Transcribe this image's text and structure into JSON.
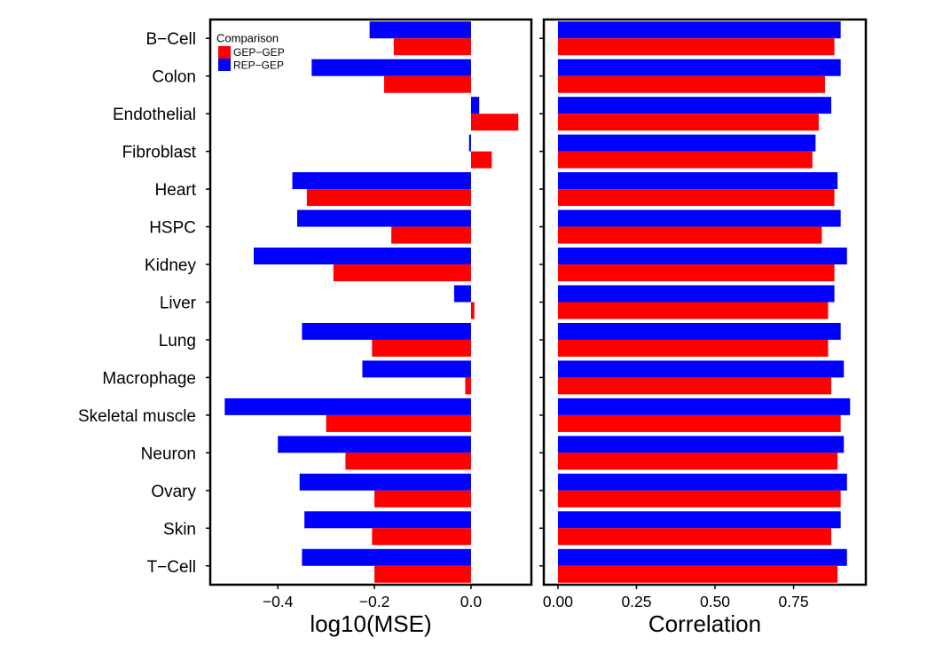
{
  "chart_data": [
    {
      "type": "bar",
      "orientation": "horizontal",
      "categories": [
        "B−Cell",
        "Colon",
        "Endothelial",
        "Fibroblast",
        "Heart",
        "HSPC",
        "Kidney",
        "Liver",
        "Lung",
        "Macrophage",
        "Skeletal muscle",
        "Neuron",
        "Ovary",
        "Skin",
        "T−Cell"
      ],
      "series": [
        {
          "name": "REP−GEP",
          "color": "#0000ff",
          "values": [
            -0.21,
            -0.33,
            0.017,
            -0.004,
            -0.37,
            -0.36,
            -0.45,
            -0.035,
            -0.35,
            -0.225,
            -0.51,
            -0.4,
            -0.355,
            -0.345,
            -0.35
          ]
        },
        {
          "name": "GEP−GEP",
          "color": "#ff0000",
          "values": [
            -0.16,
            -0.18,
            0.098,
            0.043,
            -0.34,
            -0.165,
            -0.285,
            0.007,
            -0.205,
            -0.012,
            -0.3,
            -0.26,
            -0.2,
            -0.205,
            -0.2
          ]
        }
      ],
      "xlabel": "log10(MSE)",
      "xlim": [
        -0.54,
        0.125
      ],
      "xticks": [
        -0.4,
        -0.2,
        0.0
      ],
      "xtick_labels": [
        "−0.4",
        "−0.2",
        "0.0"
      ],
      "legend": {
        "title": "Comparison",
        "position": "top-left",
        "entries": [
          "GEP−GEP",
          "REP−GEP"
        ]
      },
      "grid": false
    },
    {
      "type": "bar",
      "orientation": "horizontal",
      "categories": [
        "B−Cell",
        "Colon",
        "Endothelial",
        "Fibroblast",
        "Heart",
        "HSPC",
        "Kidney",
        "Liver",
        "Lung",
        "Macrophage",
        "Skeletal muscle",
        "Neuron",
        "Ovary",
        "Skin",
        "T−Cell"
      ],
      "series": [
        {
          "name": "REP−GEP",
          "color": "#0000ff",
          "values": [
            0.9,
            0.9,
            0.87,
            0.82,
            0.89,
            0.9,
            0.92,
            0.88,
            0.9,
            0.91,
            0.93,
            0.91,
            0.92,
            0.9,
            0.92
          ]
        },
        {
          "name": "GEP−GEP",
          "color": "#ff0000",
          "values": [
            0.88,
            0.85,
            0.83,
            0.81,
            0.88,
            0.84,
            0.88,
            0.86,
            0.86,
            0.87,
            0.9,
            0.89,
            0.9,
            0.87,
            0.89
          ]
        }
      ],
      "xlabel": "Correlation",
      "xlim": [
        -0.045,
        0.98
      ],
      "xticks": [
        0.0,
        0.25,
        0.5,
        0.75
      ],
      "xtick_labels": [
        "0.00",
        "0.25",
        "0.50",
        "0.75"
      ],
      "grid": false
    }
  ]
}
